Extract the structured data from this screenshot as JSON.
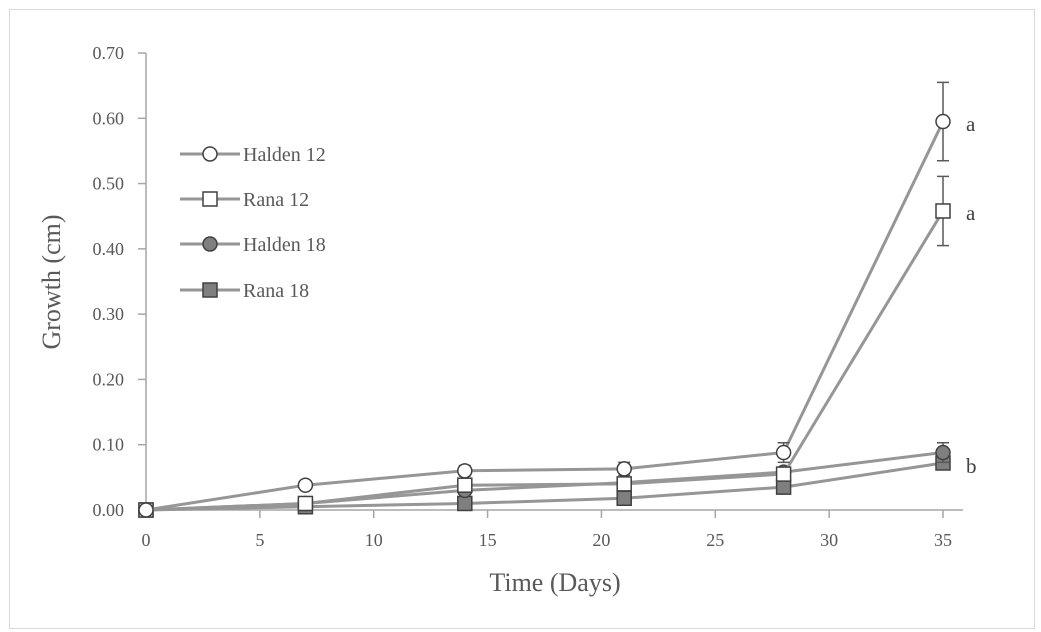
{
  "chart_data": {
    "type": "line",
    "xlabel": "Time (Days)",
    "ylabel": "Growth (cm)",
    "xlim": [
      0,
      35
    ],
    "ylim": [
      0,
      0.7
    ],
    "x_ticks": [
      "0",
      "5",
      "10",
      "15",
      "20",
      "25",
      "30",
      "35"
    ],
    "y_ticks": [
      "0.00",
      "0.10",
      "0.20",
      "0.30",
      "0.40",
      "0.50",
      "0.60",
      "0.70"
    ],
    "grid": false,
    "legend_position": "left",
    "x": [
      0,
      7,
      14,
      21,
      28,
      35
    ],
    "series": [
      {
        "name": "Halden 12",
        "marker": "circle-open",
        "values": [
          0.0,
          0.038,
          0.06,
          0.063,
          0.088,
          0.595
        ],
        "errors": [
          0,
          0.005,
          0.008,
          0.01,
          0.015,
          0.06
        ]
      },
      {
        "name": "Rana 12",
        "marker": "square-open",
        "values": [
          0.0,
          0.01,
          0.038,
          0.04,
          0.055,
          0.458
        ],
        "errors": [
          0,
          0.003,
          0.005,
          0.005,
          0.006,
          0.053
        ]
      },
      {
        "name": "Halden 18",
        "marker": "circle-filled",
        "values": [
          0.0,
          0.01,
          0.03,
          0.042,
          0.058,
          0.088
        ],
        "errors": [
          0,
          0.003,
          0.005,
          0.005,
          0.006,
          0.015
        ]
      },
      {
        "name": "Rana 18",
        "marker": "square-filled",
        "values": [
          0.0,
          0.005,
          0.01,
          0.018,
          0.035,
          0.072
        ],
        "errors": [
          0,
          0.002,
          0.003,
          0.004,
          0.005,
          0.008
        ]
      }
    ],
    "annotations": [
      {
        "text": "a",
        "x": 35,
        "y": 0.595
      },
      {
        "text": "a",
        "x": 35,
        "y": 0.458
      },
      {
        "text": "b",
        "x": 35,
        "y": 0.072
      }
    ],
    "colors": {
      "line": "#969696",
      "marker_edge": "#404040",
      "filled_marker": "#7f7f7f",
      "open_marker": "#ffffff",
      "axis": "#a6a6a6",
      "text": "#595959"
    }
  }
}
